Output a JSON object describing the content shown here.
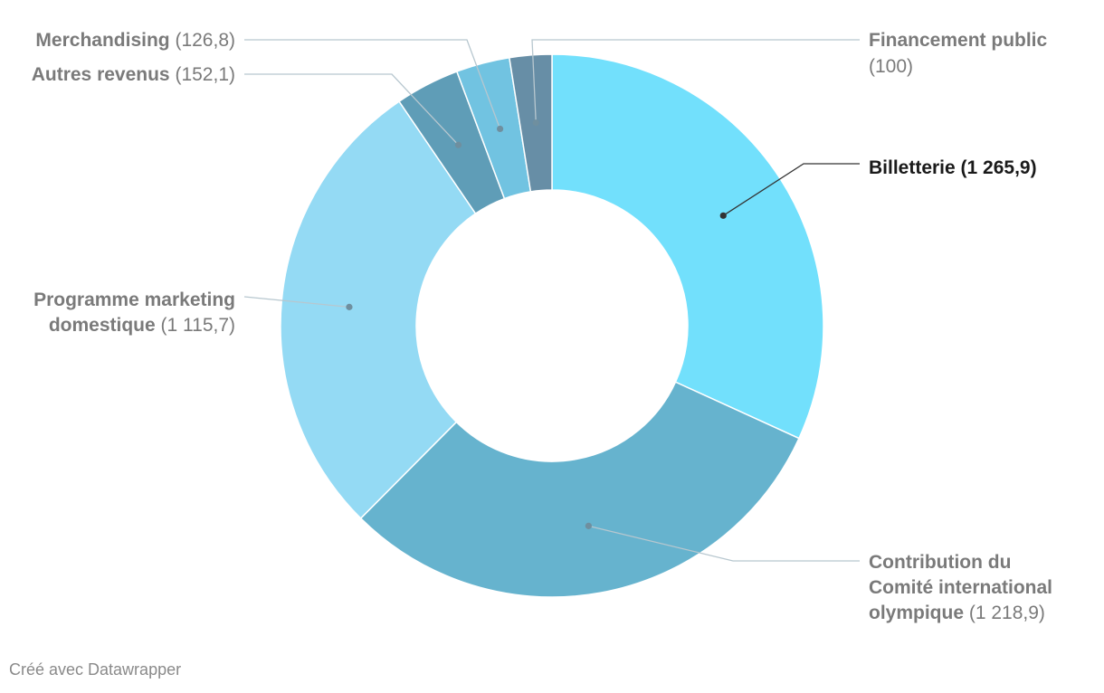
{
  "footer": "Créé avec Datawrapper",
  "chart_data": {
    "type": "pie",
    "variant": "donut",
    "slices": [
      {
        "label": "Billetterie",
        "value": 1265.9,
        "value_text": "1 265,9",
        "color": "#72e0fc",
        "highlight": true
      },
      {
        "label": "Contribution du Comité international olympique",
        "value": 1218.9,
        "value_text": "1 218,9",
        "color": "#66b3ce",
        "highlight": false
      },
      {
        "label": "Programme marketing domestique",
        "value": 1115.7,
        "value_text": "1 115,7",
        "color": "#94daf4",
        "highlight": false
      },
      {
        "label": "Autres revenus",
        "value": 152.1,
        "value_text": "152,1",
        "color": "#5f9db7",
        "highlight": false
      },
      {
        "label": "Merchandising",
        "value": 126.8,
        "value_text": "126,8",
        "color": "#71c3e1",
        "highlight": false
      },
      {
        "label": "Financement public",
        "value": 100,
        "value_text": "100",
        "color": "#678ea6",
        "highlight": false
      }
    ],
    "label_color": "#7a7a7a",
    "highlight_label_color": "#1a1a1a"
  }
}
